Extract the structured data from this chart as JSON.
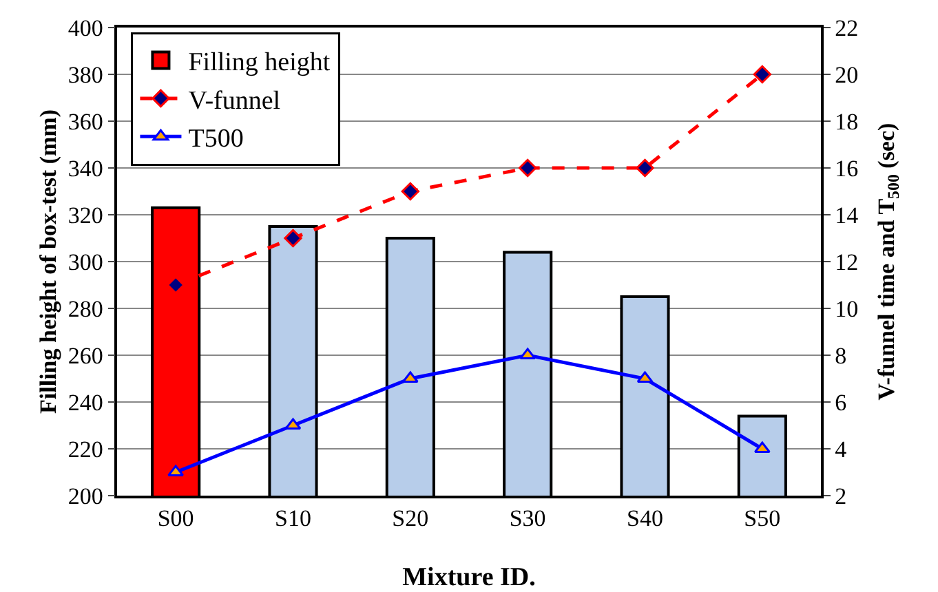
{
  "chart_data": {
    "type": "bar",
    "xlabel": "Mixture ID.",
    "ylabel": "Filling height of box-test (mm)",
    "y2label": "V-funnel time and T$_{500}$ (sec)",
    "categories": [
      "S00",
      "S10",
      "S20",
      "S30",
      "S40",
      "S50"
    ],
    "series": [
      {
        "name": "Filling height",
        "colors": [
          "#ff0000",
          "#b7cdea",
          "#b7cdea",
          "#b7cdea",
          "#b7cdea",
          "#b7cdea"
        ],
        "values": [
          323,
          315,
          310,
          304,
          285,
          234
        ]
      },
      {
        "name": "V-funnel",
        "type": "line",
        "axis": "y2",
        "color": "#ff0000",
        "line_style": "dashed",
        "marker": "diamond",
        "values": [
          11,
          13,
          15,
          16,
          16,
          20
        ]
      },
      {
        "name": "T500",
        "type": "line",
        "axis": "y2",
        "color": "#0000ff",
        "line_style": "solid",
        "marker": "triangle",
        "values": [
          3,
          5,
          7,
          8,
          7,
          4
        ]
      }
    ],
    "ylim": [
      200,
      400
    ],
    "yticks": [
      200,
      220,
      240,
      260,
      280,
      300,
      320,
      340,
      360,
      380,
      400
    ],
    "y2lim": [
      2,
      22
    ],
    "y2ticks": [
      2,
      4,
      6,
      8,
      10,
      12,
      14,
      16,
      18,
      20,
      22
    ],
    "grid": "y",
    "legend": "top left"
  }
}
